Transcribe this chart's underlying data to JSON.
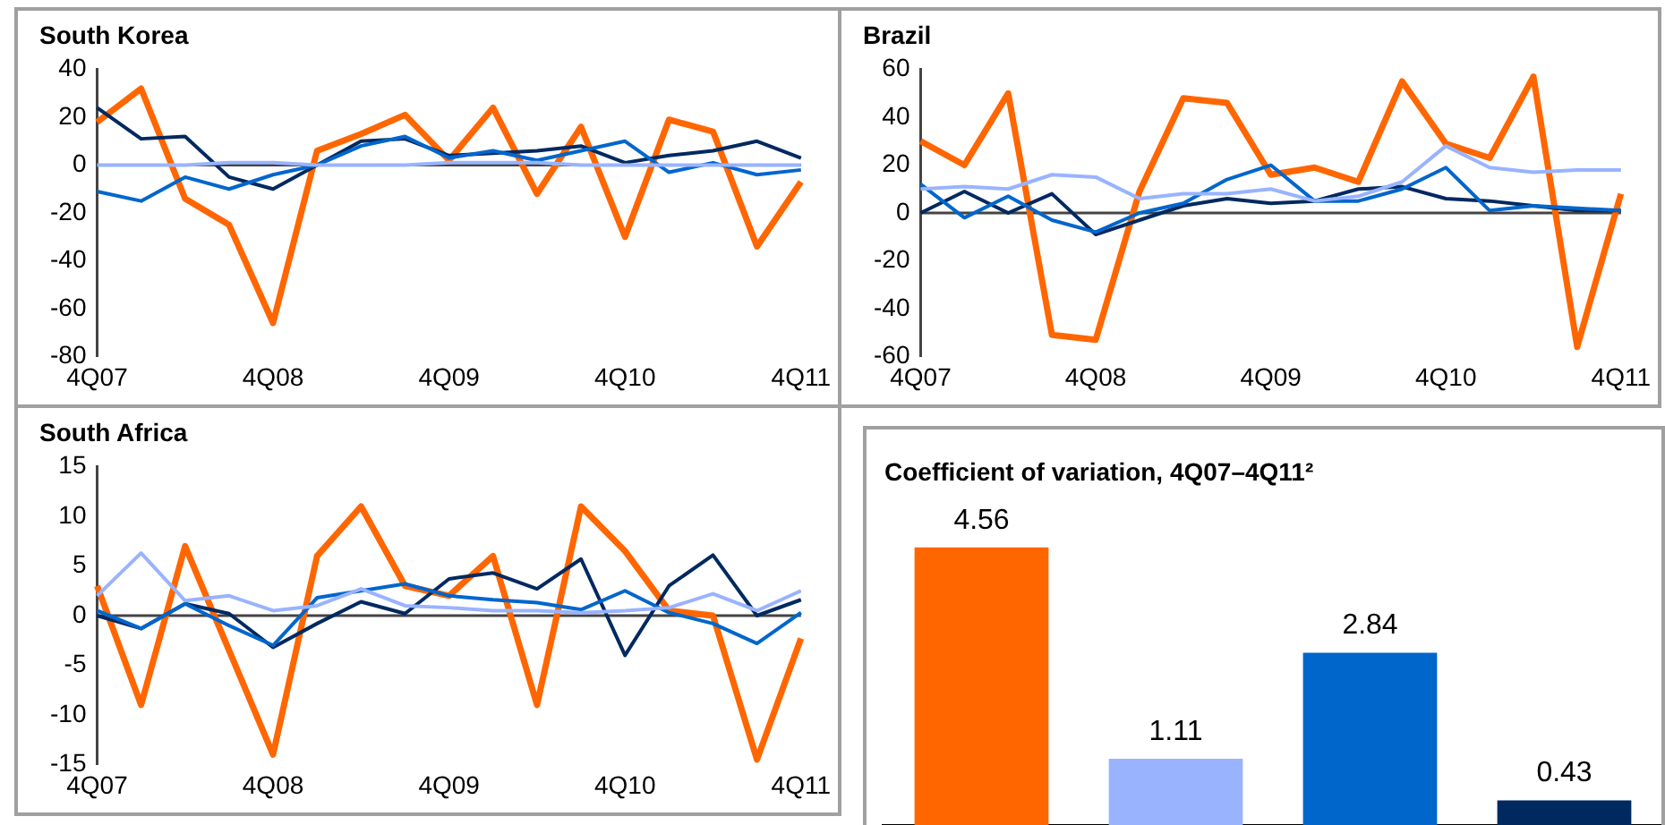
{
  "chart_data": [
    {
      "type": "line",
      "title": "South Korea",
      "categories": [
        "4Q07",
        null,
        null,
        null,
        "4Q08",
        null,
        null,
        null,
        "4Q09",
        null,
        null,
        null,
        "4Q10",
        null,
        null,
        null,
        "4Q11"
      ],
      "ylim": [
        -80,
        40
      ],
      "yticks": [
        -80,
        -60,
        -40,
        -20,
        0,
        20,
        40
      ],
      "ref_lines": [
        {
          "axis": "y",
          "value": 0
        }
      ],
      "grid": false,
      "legend": false,
      "marker": "none",
      "series": [
        {
          "color": "#99b3ff",
          "values": [
            0,
            0,
            0,
            1,
            1,
            0,
            0,
            0,
            1,
            1,
            1,
            0,
            0,
            0,
            0,
            0,
            0
          ]
        },
        {
          "color": "#0066cc",
          "values": [
            -11,
            -15,
            -5,
            -10,
            -4,
            0,
            8,
            12,
            3,
            6,
            2,
            6,
            10,
            -3,
            1,
            -4,
            -2
          ]
        },
        {
          "color": "#002960",
          "values": [
            24,
            11,
            12,
            -5,
            -10,
            0,
            10,
            11,
            4,
            5,
            6,
            8,
            1,
            4,
            6,
            10,
            3
          ]
        },
        {
          "color": "#ff6600",
          "values": [
            18,
            32,
            -14,
            -25,
            -66,
            6,
            13,
            21,
            2,
            24,
            -12,
            16,
            -30,
            19,
            14,
            -34,
            -7
          ]
        }
      ]
    },
    {
      "type": "line",
      "title": "Brazil",
      "categories": [
        "4Q07",
        null,
        null,
        null,
        "4Q08",
        null,
        null,
        null,
        "4Q09",
        null,
        null,
        null,
        "4Q10",
        null,
        null,
        null,
        "4Q11"
      ],
      "ylim": [
        -60,
        60
      ],
      "yticks": [
        -60,
        -40,
        -20,
        0,
        20,
        40,
        60
      ],
      "ref_lines": [
        {
          "axis": "y",
          "value": 0
        }
      ],
      "grid": false,
      "legend": false,
      "marker": "none",
      "series": [
        {
          "color": "#99b3ff",
          "values": [
            10,
            11,
            10,
            16,
            15,
            6,
            8,
            8,
            10,
            5,
            7,
            13,
            28,
            19,
            17,
            18,
            18
          ]
        },
        {
          "color": "#0066cc",
          "values": [
            12,
            -2,
            7,
            -3,
            -8,
            0,
            4,
            14,
            20,
            5,
            5,
            10,
            19,
            1,
            3,
            2,
            1
          ]
        },
        {
          "color": "#002960",
          "values": [
            0,
            9,
            0,
            8,
            -9,
            -3,
            3,
            6,
            4,
            5,
            10,
            11,
            6,
            5,
            3,
            1,
            1
          ]
        },
        {
          "color": "#ff6600",
          "values": [
            30,
            20,
            50,
            -51,
            -53,
            9,
            48,
            46,
            16,
            19,
            13,
            55,
            29,
            23,
            57,
            -56,
            8
          ]
        }
      ]
    },
    {
      "type": "line",
      "title": "South Africa",
      "categories": [
        "4Q07",
        null,
        null,
        null,
        "4Q08",
        null,
        null,
        null,
        "4Q09",
        null,
        null,
        null,
        "4Q10",
        null,
        null,
        null,
        "4Q11"
      ],
      "ylim": [
        -15,
        15
      ],
      "yticks": [
        -15,
        -10,
        -5,
        0,
        5,
        10,
        15
      ],
      "ref_lines": [
        {
          "axis": "y",
          "value": 0
        }
      ],
      "grid": false,
      "legend": false,
      "marker": "none",
      "series": [
        {
          "color": "#99b3ff",
          "values": [
            2,
            6.3,
            1.5,
            2,
            0.5,
            1,
            2.7,
            1,
            0.8,
            0.5,
            0.5,
            0.3,
            0.5,
            0.8,
            2.2,
            0.5,
            2.5
          ]
        },
        {
          "color": "#0066cc",
          "values": [
            0.5,
            -1.3,
            1.2,
            -1,
            -3,
            1.8,
            2.5,
            3.2,
            2,
            1.6,
            1.3,
            0.6,
            2.5,
            0.3,
            -0.8,
            -2.8,
            0.3
          ]
        },
        {
          "color": "#002960",
          "values": [
            0,
            -1.3,
            1.2,
            0.2,
            -3.2,
            -0.8,
            1.4,
            0.2,
            3.7,
            4.3,
            2.7,
            5.7,
            -4,
            3,
            6.1,
            0,
            1.6
          ]
        },
        {
          "color": "#ff6600",
          "values": [
            3,
            -9,
            7,
            -3.5,
            -14,
            6,
            11,
            3,
            2,
            6,
            -9,
            11,
            6.5,
            0.5,
            0,
            -14.5,
            -2.3
          ]
        }
      ]
    },
    {
      "type": "bar",
      "title": "Coefficient of variation, 4Q07–4Q11²",
      "categories": [
        null,
        null,
        null,
        null
      ],
      "values": [
        4.56,
        1.11,
        2.84,
        0.43
      ],
      "colors": [
        "#ff6600",
        "#99b3ff",
        "#0066cc",
        "#002960"
      ],
      "data_labels": true,
      "legend": false,
      "grid": false
    }
  ]
}
